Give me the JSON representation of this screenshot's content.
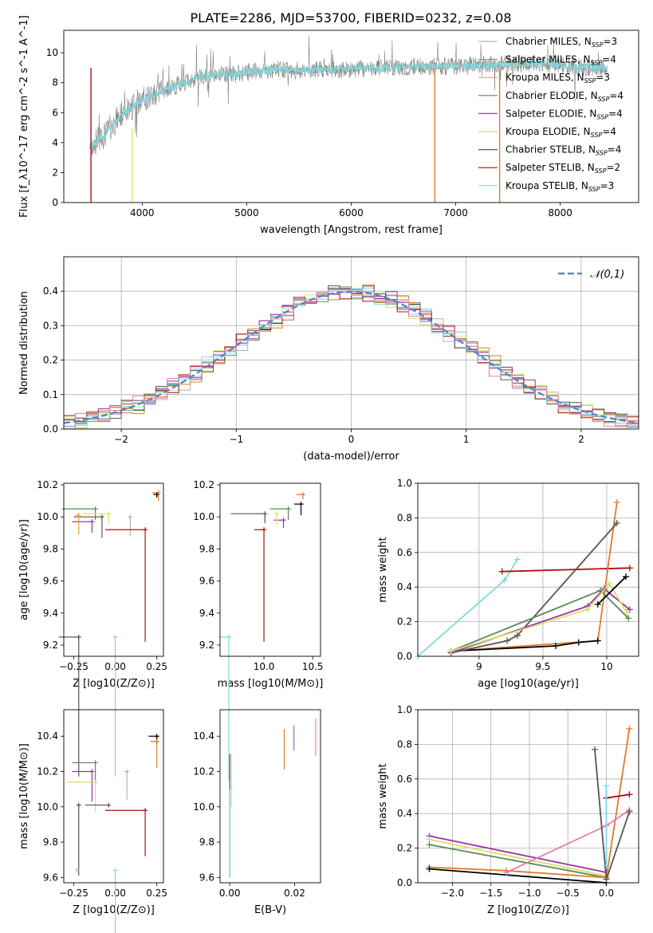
{
  "figure": {
    "title": "PLATE=2286, MJD=53700, FIBERID=0232, z=0.08"
  },
  "colors": {
    "models": [
      "#a6b4c6",
      "#e07a30",
      "#e8a03c",
      "#5a8a5a",
      "#9933aa",
      "#d8e060",
      "#555555",
      "#aa1111",
      "#80d8e0"
    ],
    "pink": "#e87bb0",
    "blue": "#5588cc",
    "normal_dashed": "#5588cc",
    "spectrum_gray": "#808080",
    "spectrum_cyan": "#80d8e0"
  },
  "chart_data": [
    {
      "type": "line",
      "panel": "spectrum",
      "xlabel": "wavelength [Angstrom, rest frame]",
      "ylabel": "Flux [f_λ10^-17 erg cm^-2 s^-1 A^-1]",
      "xlim": [
        3250,
        8750
      ],
      "ylim": [
        0,
        11.5
      ],
      "xticks": [
        4000,
        5000,
        6000,
        7000,
        8000
      ],
      "yticks": [
        0,
        2,
        4,
        6,
        8,
        10
      ],
      "legend_position": "right",
      "legend": [
        {
          "label": "Chabrier MILES, N",
          "sub": "SSP",
          "suffix": "=3"
        },
        {
          "label": "Salpeter MILES, N",
          "sub": "SSP",
          "suffix": "=4"
        },
        {
          "label": "Kroupa MILES, N",
          "sub": "SSP",
          "suffix": "=3"
        },
        {
          "label": "Chabrier ELODIE, N",
          "sub": "SSP",
          "suffix": "=4"
        },
        {
          "label": "Salpeter ELODIE, N",
          "sub": "SSP",
          "suffix": "=4"
        },
        {
          "label": "Kroupa ELODIE, N",
          "sub": "SSP",
          "suffix": "=4"
        },
        {
          "label": "Chabrier STELIB, N",
          "sub": "SSP",
          "suffix": "=4"
        },
        {
          "label": "Salpeter STELIB, N",
          "sub": "SSP",
          "suffix": "=2"
        },
        {
          "label": "Kroupa STELIB, N",
          "sub": "SSP",
          "suffix": "=3"
        }
      ],
      "continuum": {
        "x": [
          3500,
          3650,
          3800,
          3950,
          4100,
          4250,
          4400,
          4550,
          4700,
          4900,
          5100,
          5300,
          5500,
          5700,
          5900,
          6100,
          6300,
          6500,
          6700,
          6900,
          7100,
          7300,
          7500,
          7700,
          7900,
          8100,
          8300,
          8500
        ],
        "y": [
          3.7,
          4.6,
          5.9,
          6.6,
          7.2,
          7.6,
          8.0,
          8.4,
          8.6,
          8.6,
          8.8,
          8.9,
          8.8,
          8.9,
          8.9,
          8.95,
          9.0,
          9.05,
          9.1,
          9.1,
          9.15,
          9.2,
          9.25,
          9.3,
          9.25,
          9.1,
          9.0,
          8.9
        ]
      }
    },
    {
      "type": "line",
      "panel": "residuals",
      "xlabel": "(data-model)/error",
      "ylabel": "Normed distribution",
      "xlim": [
        -2.5,
        2.5
      ],
      "ylim": [
        0,
        0.5
      ],
      "xticks": [
        -2,
        -1,
        0,
        1,
        2
      ],
      "xtick_labels": [
        "−2",
        "−1",
        "0",
        "1",
        "2"
      ],
      "yticks": [
        0.0,
        0.1,
        0.2,
        0.3,
        0.4
      ],
      "legend": "𝒩(0,1)",
      "legend_position": "top-right",
      "grid": true
    },
    {
      "type": "scatter",
      "panel": "age-vs-Z",
      "xlabel": "Z [log10(Z/Z⊙)]",
      "ylabel": "age  [log10(age/yr)]",
      "xlim": [
        -0.31,
        0.29
      ],
      "ylim": [
        9.13,
        10.21
      ],
      "xticks": [
        -0.25,
        0.0,
        0.25
      ],
      "xtick_labels": [
        "−0.25",
        "0.00",
        "0.25"
      ],
      "yticks": [
        9.2,
        9.4,
        9.6,
        9.8,
        10.0,
        10.2
      ],
      "points": [
        {
          "x": 0.26,
          "y": 10.15,
          "dx": 0.04,
          "dy": 0.05,
          "series": 1
        },
        {
          "x": 0.25,
          "y": 10.14,
          "dx": 0.02,
          "dy": 0.02,
          "series": 9
        },
        {
          "x": -0.12,
          "y": 10.05,
          "dx": 0.2,
          "dy": 0.07,
          "series": 3
        },
        {
          "x": -0.04,
          "y": 10.02,
          "dx": 0.16,
          "dy": 0.06,
          "series": 5
        },
        {
          "x": -0.14,
          "y": 9.97,
          "dx": 0.12,
          "dy": 0.07,
          "series": 4
        },
        {
          "x": -0.08,
          "y": 10.0,
          "dx": 0.17,
          "dy": 0.13,
          "series": 6
        },
        {
          "x": 0.09,
          "y": 10.0,
          "dx": 0.01,
          "dy": 0.12,
          "series": 0
        },
        {
          "x": -0.22,
          "y": 10.01,
          "dx": 0.02,
          "dy": 0.12,
          "series": 2
        },
        {
          "x": 0.18,
          "y": 9.92,
          "dx": 0.24,
          "dy": 0.7,
          "series": 7
        },
        {
          "x": -0.22,
          "y": 9.25,
          "dx": 0.12,
          "dy": 0.87,
          "series": 6
        },
        {
          "x": 0.0,
          "y": 9.25,
          "dx": 0.0,
          "dy": 0.87,
          "series": 8
        }
      ]
    },
    {
      "type": "scatter",
      "panel": "age-vs-mass",
      "xlabel": "mass [log10(M/M⊙)]",
      "xlim": [
        9.55,
        10.58
      ],
      "ylim": [
        9.13,
        10.21
      ],
      "xticks": [
        10.0,
        10.5
      ],
      "xtick_labels": [
        "10.0",
        "10.5"
      ],
      "yticks": [
        9.2,
        9.4,
        9.6,
        9.8,
        10.0,
        10.2
      ],
      "points": [
        {
          "x": 10.4,
          "y": 10.14,
          "dx": 0.07,
          "dy": 0.03,
          "series": 1
        },
        {
          "x": 10.38,
          "y": 10.08,
          "dx": 0.07,
          "dy": 0.07,
          "series": 9
        },
        {
          "x": 10.25,
          "y": 10.05,
          "dx": 0.19,
          "dy": 0.07,
          "series": 3
        },
        {
          "x": 10.2,
          "y": 9.98,
          "dx": 0.1,
          "dy": 0.05,
          "series": 4
        },
        {
          "x": 10.13,
          "y": 10.02,
          "dx": 0.02,
          "dy": 0.07,
          "series": 5
        },
        {
          "x": 10.01,
          "y": 10.02,
          "dx": 0.35,
          "dy": 0.06,
          "series": 6
        },
        {
          "x": 10.0,
          "y": 9.92,
          "dx": 0.1,
          "dy": 0.7,
          "series": 7
        },
        {
          "x": 9.64,
          "y": 9.25,
          "dx": 0.0,
          "dy": 0.9,
          "series": 8
        },
        {
          "x": 9.64,
          "y": 9.25,
          "dx": 0.11,
          "dy": 0.0,
          "series": 8
        }
      ]
    },
    {
      "type": "line",
      "panel": "weight-vs-age",
      "xlabel": "age  [log10(age/yr)]",
      "ylabel": "mass weight",
      "xlim": [
        8.52,
        10.25
      ],
      "ylim": [
        0,
        1
      ],
      "xticks": [
        9.0,
        9.5,
        10.0
      ],
      "yticks": [
        0.0,
        0.2,
        0.4,
        0.6,
        0.8,
        1.0
      ],
      "grid": true,
      "series": [
        {
          "x": [
            8.52,
            9.2,
            9.3
          ],
          "y": [
            0.0,
            0.44,
            0.56
          ],
          "color_index": 8
        },
        {
          "x": [
            9.18,
            10.18
          ],
          "y": [
            0.49,
            0.51
          ],
          "color_index": 7
        },
        {
          "x": [
            8.78,
            9.93,
            10.08
          ],
          "y": [
            0.03,
            0.09,
            0.89
          ],
          "color_index": 1
        },
        {
          "x": [
            8.78,
            9.6,
            9.78,
            9.93
          ],
          "y": [
            0.03,
            0.06,
            0.08,
            0.09
          ],
          "color_index": 9
        },
        {
          "x": [
            8.78,
            9.22,
            9.3,
            10.08
          ],
          "y": [
            0.02,
            0.09,
            0.12,
            0.77
          ],
          "color_index": 6
        },
        {
          "x": [
            8.78,
            9.95,
            10.17
          ],
          "y": [
            0.03,
            0.38,
            0.22
          ],
          "color_index": 3
        },
        {
          "x": [
            8.78,
            9.85,
            9.98,
            10.18
          ],
          "y": [
            0.02,
            0.29,
            0.39,
            0.27
          ],
          "color_index": 4
        },
        {
          "x": [
            8.78,
            9.85,
            10.02,
            10.16
          ],
          "y": [
            0.03,
            0.27,
            0.42,
            0.25
          ],
          "color_index": 5
        },
        {
          "x": [
            9.93,
            10.15
          ],
          "y": [
            0.3,
            0.46
          ],
          "color_index": 9
        }
      ]
    },
    {
      "type": "scatter",
      "panel": "mass-vs-Z",
      "xlabel": "Z [log10(Z/Z⊙)]",
      "ylabel": "mass [log10(M/M⊙)]",
      "xlim": [
        -0.31,
        0.29
      ],
      "ylim": [
        9.57,
        10.55
      ],
      "xticks": [
        -0.25,
        0.0,
        0.25
      ],
      "xtick_labels": [
        "−0.25",
        "0.00",
        "0.25"
      ],
      "yticks": [
        9.6,
        9.8,
        10.0,
        10.2,
        10.4
      ],
      "points": [
        {
          "x": 0.25,
          "y": 10.4,
          "dx": 0.05,
          "dy": 0.04,
          "series": 9
        },
        {
          "x": 0.25,
          "y": 10.37,
          "dx": 0.04,
          "dy": 0.15,
          "series": 1
        },
        {
          "x": -0.12,
          "y": 10.25,
          "dx": 0.14,
          "dy": 0.12,
          "series": 3
        },
        {
          "x": -0.14,
          "y": 10.2,
          "dx": 0.12,
          "dy": 0.17,
          "series": 4
        },
        {
          "x": -0.12,
          "y": 10.14,
          "dx": 0.17,
          "dy": 0.17,
          "series": 5
        },
        {
          "x": 0.07,
          "y": 10.2,
          "dx": 0.0,
          "dy": 0.16,
          "series": 0
        },
        {
          "x": -0.22,
          "y": 10.01,
          "dx": 0.01,
          "dy": 0.4,
          "series": 6
        },
        {
          "x": -0.04,
          "y": 10.01,
          "dx": 0.14,
          "dy": 0.01,
          "series": 6
        },
        {
          "x": 0.18,
          "y": 9.98,
          "dx": 0.24,
          "dy": 0.26,
          "series": 7
        },
        {
          "x": 0.0,
          "y": 9.64,
          "dx": 0.0,
          "dy": 0.56,
          "series": 8
        },
        {
          "x": -0.23,
          "y": 9.64,
          "dx": 0.0,
          "dy": 0.0,
          "series": 8
        }
      ]
    },
    {
      "type": "scatter",
      "panel": "mass-vs-EBV",
      "xlabel": "E(B-V)",
      "xlim": [
        -0.003,
        0.028
      ],
      "ylim": [
        9.57,
        10.55
      ],
      "xticks": [
        0.0,
        0.02
      ],
      "xtick_labels": [
        "0.00",
        "0.02"
      ],
      "yticks": [
        9.6,
        9.8,
        10.0,
        10.2,
        10.4
      ],
      "vlines": [
        {
          "x": 0.0,
          "y0": 9.6,
          "y1": 10.3,
          "color_index": 6
        },
        {
          "x": 0.0,
          "y0": 9.6,
          "y1": 10.1,
          "color_index": 8
        },
        {
          "x": 0.0005,
          "y0": 10.0,
          "y1": 10.3,
          "color_index": 5
        },
        {
          "x": 0.0168,
          "y0": 10.21,
          "y1": 10.44,
          "color_index": 1
        },
        {
          "x": 0.0198,
          "y0": 10.32,
          "y1": 10.46,
          "color_index": -1
        },
        {
          "x": 0.0265,
          "y0": 10.29,
          "y1": 10.5,
          "color_index": -2
        }
      ]
    },
    {
      "type": "line",
      "panel": "weight-vs-Z",
      "xlabel": "Z [log10(Z/Z⊙)]",
      "ylabel": "mass weight",
      "xlim": [
        -2.45,
        0.42
      ],
      "ylim": [
        0,
        1
      ],
      "xticks": [
        -2.0,
        -1.5,
        -1.0,
        -0.5,
        0.0
      ],
      "xtick_labels": [
        "−2.0",
        "−1.5",
        "−1.0",
        "−0.5",
        "0.0"
      ],
      "yticks": [
        0.0,
        0.2,
        0.4,
        0.6,
        0.8,
        1.0
      ],
      "grid": true,
      "series": [
        {
          "x": [
            -2.3,
            0.0
          ],
          "y": [
            0.27,
            0.06
          ],
          "color_index": 4
        },
        {
          "x": [
            -2.3,
            0.0
          ],
          "y": [
            0.25,
            0.04
          ],
          "color_index": 5
        },
        {
          "x": [
            -2.3,
            0.0
          ],
          "y": [
            0.22,
            0.03
          ],
          "color_index": 3
        },
        {
          "x": [
            -2.3,
            -1.3,
            0.0,
            0.3
          ],
          "y": [
            0.09,
            0.07,
            0.03,
            0.89
          ],
          "color_index": 1
        },
        {
          "x": [
            -2.3,
            0.0
          ],
          "y": [
            0.08,
            0.0
          ],
          "color_index": 9
        },
        {
          "x": [
            -1.3,
            0.0,
            0.3
          ],
          "y": [
            0.06,
            0.33,
            0.42
          ],
          "color_index": -2
        },
        {
          "x": [
            -0.15,
            0.0,
            0.3
          ],
          "y": [
            0.77,
            0.02,
            0.41
          ],
          "color_index": 6
        },
        {
          "x": [
            0.0,
            0.3
          ],
          "y": [
            0.49,
            0.51
          ],
          "color_index": 7
        },
        {
          "x": [
            0.0,
            0.0
          ],
          "y": [
            0.1,
            0.56
          ],
          "color_index": 8
        }
      ]
    }
  ]
}
